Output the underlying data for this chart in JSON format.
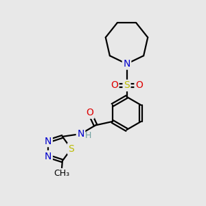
{
  "background_color": "#e8e8e8",
  "figsize": [
    3.0,
    3.0
  ],
  "dpi": 100,
  "bond_color": "#000000",
  "bond_width": 1.6,
  "atom_colors": {
    "C": "#000000",
    "N": "#0000cc",
    "O": "#dd0000",
    "S": "#bbbb00",
    "H": "#70a0a0"
  },
  "xlim": [
    0,
    10
  ],
  "ylim": [
    0,
    10
  ]
}
